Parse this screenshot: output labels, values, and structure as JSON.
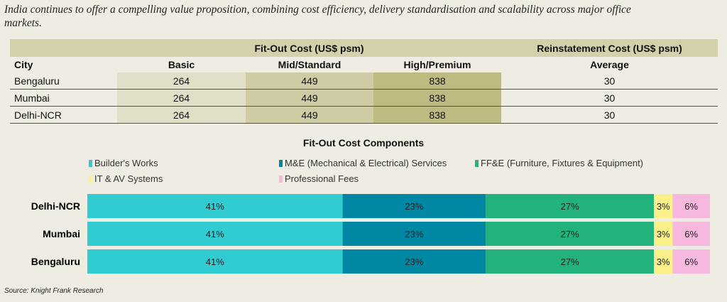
{
  "intro": "India continues to offer a compelling value proposition, combining cost efficiency, delivery standardisation and scalability across major office markets.",
  "table": {
    "group_headers": {
      "fitout": "Fit-Out Cost (US$ psm)",
      "reinstatement": "Reinstatement Cost (US$ psm)"
    },
    "columns": [
      "City",
      "Basic",
      "Mid/Standard",
      "High/Premium",
      "Average"
    ],
    "rows": [
      {
        "city": "Bengaluru",
        "basic": "264",
        "mid": "449",
        "high": "838",
        "avg": "30"
      },
      {
        "city": "Mumbai",
        "basic": "264",
        "mid": "449",
        "high": "838",
        "avg": "30"
      },
      {
        "city": "Delhi-NCR",
        "basic": "264",
        "mid": "449",
        "high": "838",
        "avg": "30"
      }
    ]
  },
  "chart_data": {
    "type": "bar",
    "stacked": true,
    "orientation": "horizontal",
    "title": "Fit-Out Cost Components",
    "categories": [
      "Delhi-NCR",
      "Mumbai",
      "Bengaluru"
    ],
    "xlim": [
      0,
      100
    ],
    "series": [
      {
        "name": "Builder's Works",
        "color": "#31cbd2",
        "values": [
          41,
          41,
          41
        ]
      },
      {
        "name": "M&E (Mechanical & Electrical) Services",
        "color": "#0087a3",
        "values": [
          23,
          23,
          23
        ]
      },
      {
        "name": "FF&E (Furniture, Fixtures & Equipment)",
        "color": "#22b37c",
        "values": [
          27,
          27,
          27
        ]
      },
      {
        "name": "IT & AV Systems",
        "color": "#fbf08a",
        "values": [
          3,
          3,
          3
        ]
      },
      {
        "name": "Professional Fees",
        "color": "#f6b8dd",
        "values": [
          6,
          6,
          6
        ]
      }
    ],
    "legend": "top"
  },
  "source": "Source: Knight Frank Research"
}
